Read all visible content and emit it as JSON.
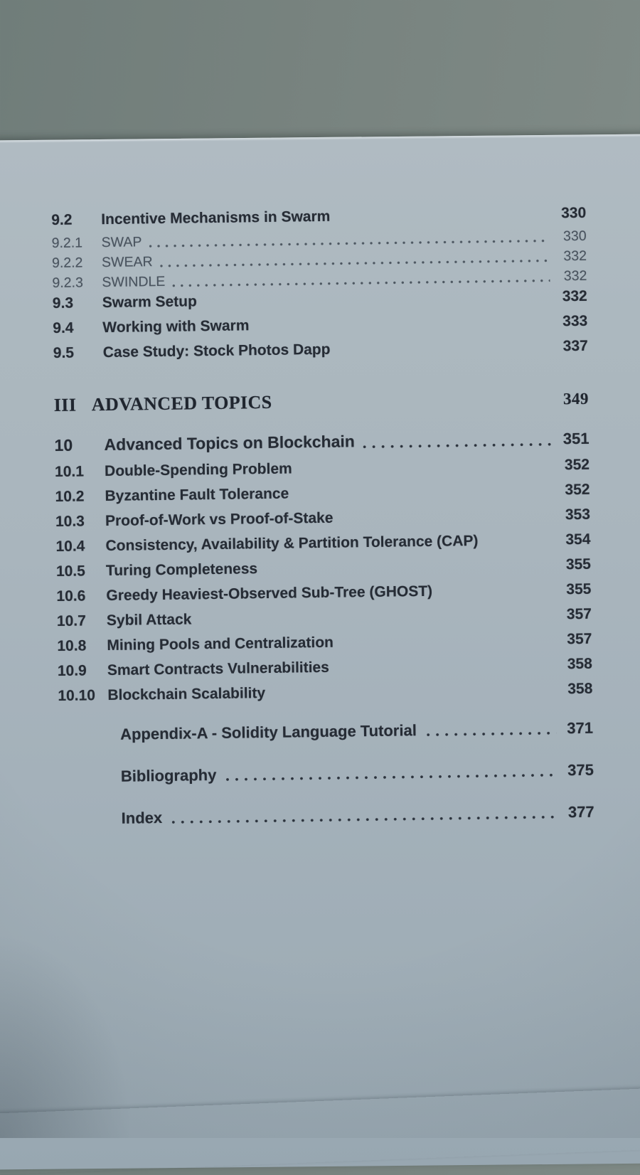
{
  "photo_colors": {
    "backdrop": "#78837f",
    "paper": "#a9b5bd",
    "ink_bold": "#262c35",
    "ink_light": "#49535e"
  },
  "toc": {
    "entries": [
      {
        "num": "9.2",
        "title": "Incentive Mechanisms in Swarm",
        "page": "330",
        "level": "section",
        "leader": false
      },
      {
        "num": "9.2.1",
        "title": "SWAP",
        "page": "330",
        "level": "subsection",
        "leader": true
      },
      {
        "num": "9.2.2",
        "title": "SWEAR",
        "page": "332",
        "level": "subsection",
        "leader": true
      },
      {
        "num": "9.2.3",
        "title": "SWINDLE",
        "page": "332",
        "level": "subsection",
        "leader": true
      },
      {
        "num": "9.3",
        "title": "Swarm Setup",
        "page": "332",
        "level": "section",
        "leader": false
      },
      {
        "num": "9.4",
        "title": "Working with Swarm",
        "page": "333",
        "level": "section",
        "leader": false
      },
      {
        "num": "9.5",
        "title": "Case Study: Stock Photos Dapp",
        "page": "337",
        "level": "section",
        "leader": false
      },
      {
        "num": "III",
        "title": "ADVANCED TOPICS",
        "page": "349",
        "level": "part",
        "leader": false
      },
      {
        "num": "10",
        "title": "Advanced Topics on Blockchain",
        "page": "351",
        "level": "chapter",
        "leader": true
      },
      {
        "num": "10.1",
        "title": "Double-Spending Problem",
        "page": "352",
        "level": "section",
        "leader": false
      },
      {
        "num": "10.2",
        "title": "Byzantine Fault Tolerance",
        "page": "352",
        "level": "section",
        "leader": false
      },
      {
        "num": "10.3",
        "title": "Proof-of-Work vs Proof-of-Stake",
        "page": "353",
        "level": "section",
        "leader": false
      },
      {
        "num": "10.4",
        "title": "Consistency, Availability & Partition Tolerance (CAP)",
        "page": "354",
        "level": "section",
        "leader": false
      },
      {
        "num": "10.5",
        "title": "Turing Completeness",
        "page": "355",
        "level": "section",
        "leader": false
      },
      {
        "num": "10.6",
        "title": "Greedy Heaviest-Observed Sub-Tree (GHOST)",
        "page": "355",
        "level": "section",
        "leader": false
      },
      {
        "num": "10.7",
        "title": "Sybil Attack",
        "page": "357",
        "level": "section",
        "leader": false
      },
      {
        "num": "10.8",
        "title": "Mining Pools and Centralization",
        "page": "357",
        "level": "section",
        "leader": false
      },
      {
        "num": "10.9",
        "title": "Smart Contracts Vulnerabilities",
        "page": "358",
        "level": "section",
        "leader": false
      },
      {
        "num": "10.10",
        "title": "Blockchain Scalability",
        "page": "358",
        "level": "section",
        "leader": false
      },
      {
        "num": "",
        "title": "Appendix-A - Solidity Language Tutorial",
        "page": "371",
        "level": "backmatter",
        "leader": true
      },
      {
        "num": "",
        "title": "Bibliography",
        "page": "375",
        "level": "backmatter",
        "leader": true
      },
      {
        "num": "",
        "title": "Index",
        "page": "377",
        "level": "backmatter",
        "leader": true
      }
    ]
  }
}
